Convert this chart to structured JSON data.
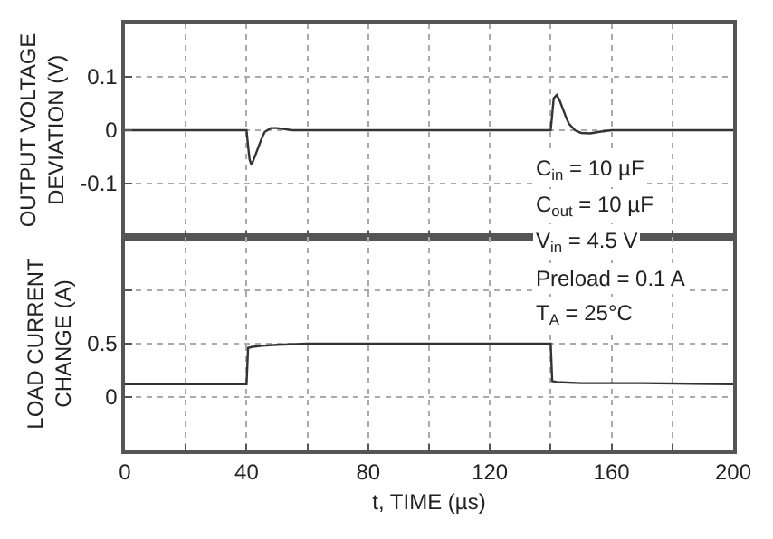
{
  "chart_data": [
    {
      "type": "line",
      "ylabel": "OUTPUT VOLTAGE\nDEVIATION (V)",
      "xlim": [
        0,
        200
      ],
      "xticks": [
        0,
        {
          "value": 20,
          "label": null
        },
        40,
        {
          "value": 60,
          "label": null
        },
        80,
        {
          "value": 100,
          "label": null
        },
        120,
        {
          "value": 140,
          "label": null
        },
        160,
        {
          "value": 180,
          "label": null
        },
        200
      ],
      "ylim": [
        -0.2,
        0.2
      ],
      "yticks": [
        {
          "value": -0.2,
          "label": null
        },
        -0.1,
        0,
        0.1,
        {
          "value": 0.2,
          "label": null
        }
      ],
      "grid": true,
      "tick_labels": "y",
      "marker": "none",
      "line_style": "solid",
      "x": [
        0,
        20,
        39,
        40,
        40.5,
        41,
        41.5,
        42,
        43,
        44,
        45,
        46,
        48,
        50,
        55,
        60,
        80,
        100,
        120,
        139,
        140,
        140.5,
        141,
        142,
        143,
        144,
        145,
        146,
        148,
        150,
        153,
        156,
        160,
        180,
        200
      ],
      "series": [
        {
          "color": "#333333",
          "values": [
            0,
            0,
            0,
            0,
            -0.03,
            -0.055,
            -0.063,
            -0.06,
            -0.045,
            -0.03,
            -0.015,
            -0.003,
            0.004,
            0.004,
            0,
            0,
            0,
            0,
            0,
            0,
            0,
            0.03,
            0.06,
            0.066,
            0.055,
            0.04,
            0.025,
            0.012,
            0,
            -0.005,
            -0.006,
            -0.003,
            0,
            0,
            0
          ]
        }
      ]
    },
    {
      "type": "line",
      "ylabel": "LOAD CURRENT\nCHANGE (A)",
      "xlabel": "t, TIME (µs)",
      "xlim": [
        0,
        200
      ],
      "xticks": [
        0,
        {
          "value": 20,
          "label": null
        },
        40,
        {
          "value": 60,
          "label": null
        },
        80,
        {
          "value": 100,
          "label": null
        },
        120,
        {
          "value": 140,
          "label": null
        },
        160,
        {
          "value": 180,
          "label": null
        },
        200
      ],
      "ylim": [
        -0.5,
        1.5
      ],
      "yticks": [
        {
          "value": -0.5,
          "label": null
        },
        0,
        0.5,
        {
          "value": 1,
          "label": null
        },
        {
          "value": 1.5,
          "label": null
        }
      ],
      "grid": true,
      "marker": "none",
      "line_style": "solid",
      "x": [
        0,
        20,
        39.5,
        40,
        40.5,
        42,
        45,
        50,
        60,
        100,
        139.5,
        140,
        140.5,
        142,
        150,
        170,
        200
      ],
      "series": [
        {
          "color": "#333333",
          "values": [
            0.12,
            0.12,
            0.12,
            0.12,
            0.46,
            0.47,
            0.48,
            0.49,
            0.5,
            0.5,
            0.5,
            0.5,
            0.15,
            0.14,
            0.13,
            0.13,
            0.12
          ]
        }
      ],
      "annotations": [
        "C$_{in}$ = 10 µF",
        "C$_{out}$ = 10 µF",
        "V$_{in}$ = 4.5 V",
        "Preload = 0.1 A",
        "T$_{A}$ = 25°C"
      ]
    }
  ]
}
